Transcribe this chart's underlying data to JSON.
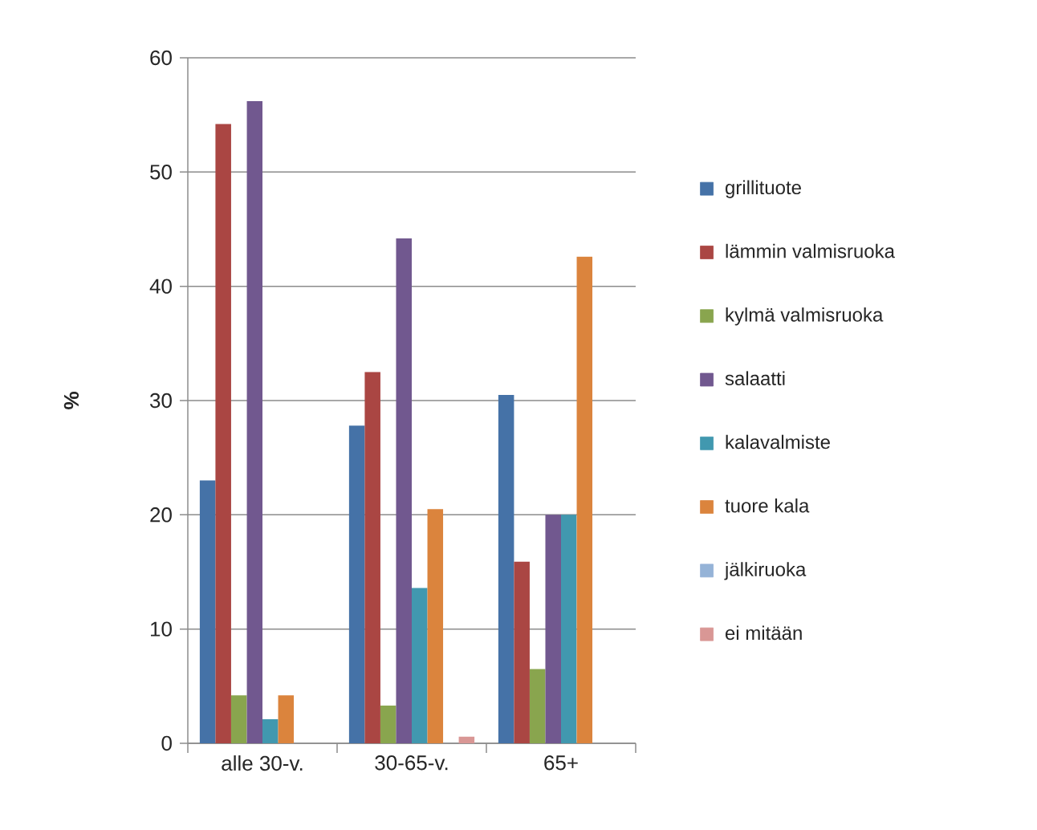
{
  "chart_data": {
    "type": "bar",
    "categories": [
      "alle 30-v.",
      "30-65-v.",
      "65+"
    ],
    "ylabel": "%",
    "ylim": [
      0,
      60
    ],
    "yticks": [
      0,
      10,
      20,
      30,
      40,
      50,
      60
    ],
    "grid": "y",
    "legend": "right",
    "series": [
      {
        "name": "grillituote",
        "color": "#4572A7",
        "values": [
          23,
          27.8,
          30.5
        ]
      },
      {
        "name": "lämmin valmisruoka",
        "color": "#AA4643",
        "values": [
          54.2,
          32.5,
          15.9
        ]
      },
      {
        "name": "kylmä valmisruoka",
        "color": "#89A54E",
        "values": [
          4.2,
          3.3,
          6.5
        ]
      },
      {
        "name": "salaatti",
        "color": "#71588F",
        "values": [
          56.2,
          44.2,
          20
        ]
      },
      {
        "name": "kalavalmiste",
        "color": "#4198AF",
        "values": [
          2.1,
          13.6,
          20
        ]
      },
      {
        "name": "tuore kala",
        "color": "#DB843D",
        "values": [
          4.2,
          20.5,
          42.6
        ]
      },
      {
        "name": "jälkiruoka",
        "color": "#95B3D7",
        "values": [
          null,
          null,
          null
        ]
      },
      {
        "name": "ei mitään",
        "color": "#D99795",
        "values": [
          null,
          0.6,
          null
        ]
      }
    ]
  }
}
